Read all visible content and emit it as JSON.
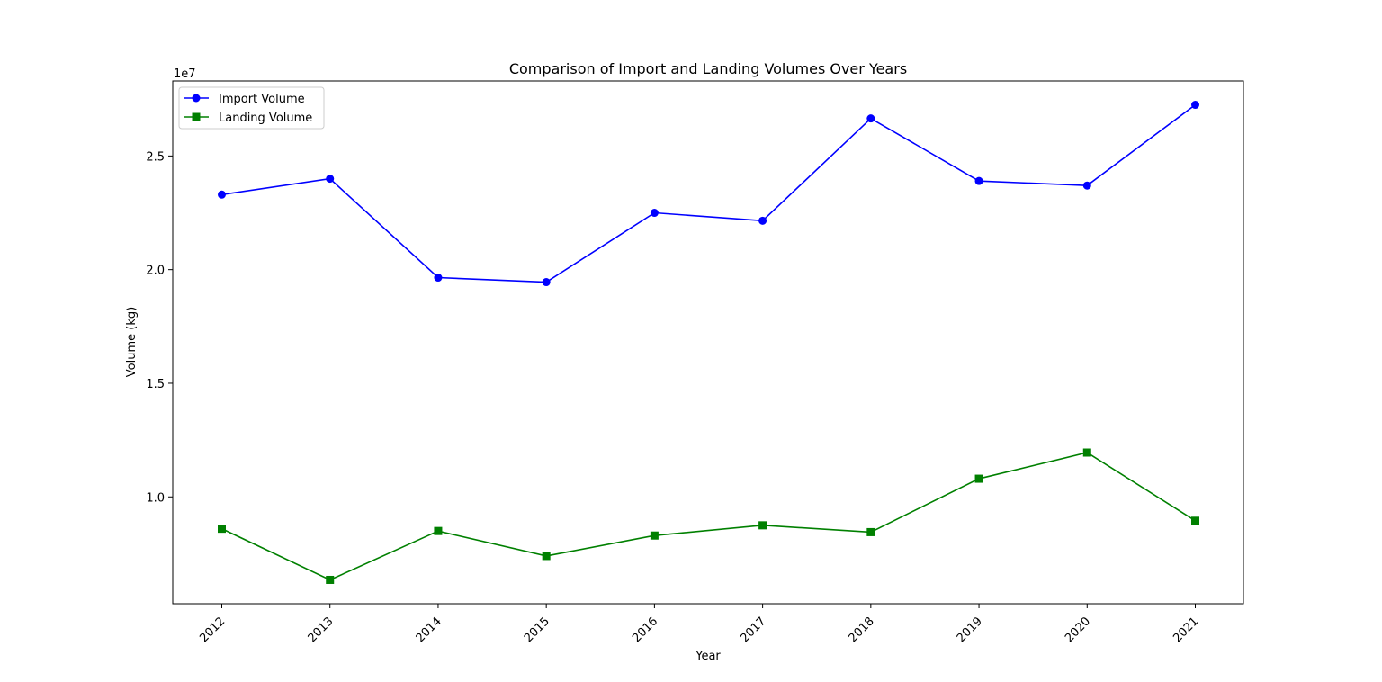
{
  "chart_data": {
    "type": "line",
    "title": "Comparison of Import and Landing Volumes Over Years",
    "xlabel": "Year",
    "ylabel": "Volume (kg)",
    "y_offset_label": "1e7",
    "y_scale_factor": 10000000,
    "categories": [
      "2012",
      "2013",
      "2014",
      "2015",
      "2016",
      "2017",
      "2018",
      "2019",
      "2020",
      "2021"
    ],
    "yticks": [
      10000000,
      15000000,
      20000000,
      25000000
    ],
    "ytick_labels": [
      "1.0",
      "1.5",
      "2.0",
      "2.5"
    ],
    "ylim": [
      5300000,
      28300000
    ],
    "grid": false,
    "legend_position": "top-left",
    "series": [
      {
        "name": "Import Volume",
        "color": "#0000ff",
        "marker": "circle",
        "values": [
          23300000,
          24000000,
          19650000,
          19450000,
          22500000,
          22150000,
          26650000,
          23900000,
          23700000,
          27250000
        ]
      },
      {
        "name": "Landing Volume",
        "color": "#008000",
        "marker": "square",
        "values": [
          8600000,
          6350000,
          8500000,
          7400000,
          8300000,
          8750000,
          8450000,
          10800000,
          11950000,
          8950000
        ]
      }
    ]
  }
}
